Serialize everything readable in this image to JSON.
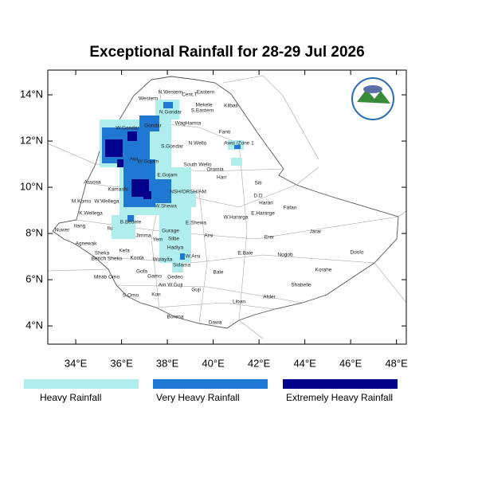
{
  "title": "Exceptional Rainfall for 28-29 Jul 2026",
  "map": {
    "lonlim": [
      32.78,
      48.43
    ],
    "latlim": [
      3.21,
      15.07
    ],
    "lat_ticks": [
      {
        "value": 14,
        "label": "14°N"
      },
      {
        "value": 12,
        "label": "12°N"
      },
      {
        "value": 10,
        "label": "10°N"
      },
      {
        "value": 8,
        "label": "8°N"
      },
      {
        "value": 6,
        "label": "6°N"
      },
      {
        "value": 4,
        "label": "4°N"
      }
    ],
    "lon_ticks": [
      {
        "value": 34,
        "label": "34°E"
      },
      {
        "value": 36,
        "label": "36°E"
      },
      {
        "value": 38,
        "label": "38°E"
      },
      {
        "value": 40,
        "label": "40°E"
      },
      {
        "value": 42,
        "label": "42°E"
      },
      {
        "value": 44,
        "label": "44°E"
      },
      {
        "value": 46,
        "label": "46°E"
      },
      {
        "value": 48,
        "label": "48°E"
      }
    ],
    "regions": [
      "Western",
      "N.Western",
      "Cent.T",
      "Eastern",
      "Mekele",
      "S.Eastern",
      "Kilbati",
      "N.Gondar",
      "W.Gondar",
      "Gondar",
      "WagHamra",
      "Fanti",
      "Awsi /Zone 1",
      "S.Gondar",
      "N.Wello",
      "Awi",
      "W.Gojam",
      "South Wello",
      "Oromia",
      "E.Gojam",
      "Hari",
      "Assosa",
      "Kamashi",
      "Siti",
      "NSH/ORSH/AM",
      "D.D",
      "Harari",
      "Fafan",
      "M.Komo",
      "W.Wellega",
      "W.Shewa",
      "K.Wellega",
      "E.Shewa",
      "W.Hararga",
      "E.Hararge",
      "Nuwer",
      "Itang",
      "Ilu",
      "B.Bedele",
      "Jimma",
      "Gurage",
      "Arsi",
      "Jarar",
      "Erer",
      "Agnewak",
      "Yem",
      "Siltie",
      "Sheka",
      "Kefa",
      "Hadiya",
      "E.Bale",
      "Nogob",
      "Doolo",
      "Bench Sheko",
      "Konta",
      "Wolayita",
      "W.Arsi",
      "Sidama",
      "Korahe",
      "Mirab Omo",
      "Gofa",
      "Gamo",
      "Gedeo",
      "Bale",
      "Shabelle",
      "Am W.Guji",
      "Kon",
      "S.Omo",
      "Guji",
      "Liban",
      "Afder",
      "Borena",
      "Dawa"
    ]
  },
  "legend": [
    {
      "label": "Heavy Rainfall",
      "color": "#b0eeee"
    },
    {
      "label": "Very Heavy Rainfall",
      "color": "#1f78d1"
    },
    {
      "label": "Extremely Heavy Rainfall",
      "color": "#00008b"
    }
  ]
}
